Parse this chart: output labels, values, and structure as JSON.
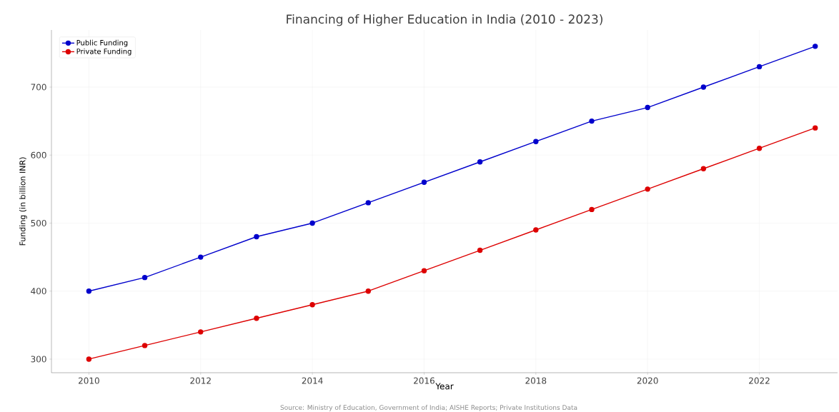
{
  "chart_data": {
    "type": "line",
    "title": "Financing of Higher Education in India (2010 - 2023)",
    "xlabel": "Year",
    "ylabel": "Funding (in billion INR)",
    "x": [
      2010,
      2011,
      2012,
      2013,
      2014,
      2015,
      2016,
      2017,
      2018,
      2019,
      2020,
      2021,
      2022,
      2023
    ],
    "series": [
      {
        "name": "Public Funding",
        "color": "#0000cc",
        "values": [
          400,
          420,
          450,
          480,
          500,
          530,
          560,
          590,
          620,
          650,
          670,
          700,
          730,
          760
        ]
      },
      {
        "name": "Private Funding",
        "color": "#dd0000",
        "values": [
          300,
          320,
          340,
          360,
          380,
          400,
          430,
          460,
          490,
          520,
          550,
          580,
          610,
          640
        ]
      }
    ],
    "xlim": [
      2009.33,
      2023.4
    ],
    "ylim": [
      280,
      784
    ],
    "xticks": [
      2010,
      2012,
      2014,
      2016,
      2018,
      2020,
      2022
    ],
    "yticks": [
      300,
      400,
      500,
      600,
      700
    ],
    "grid": true,
    "legend": "top left",
    "marker": "circle",
    "line_style": "solid",
    "annotations": [
      "Source: Ministry of Education, Government of India; AISHE Reports; Private Institutions Data"
    ]
  }
}
